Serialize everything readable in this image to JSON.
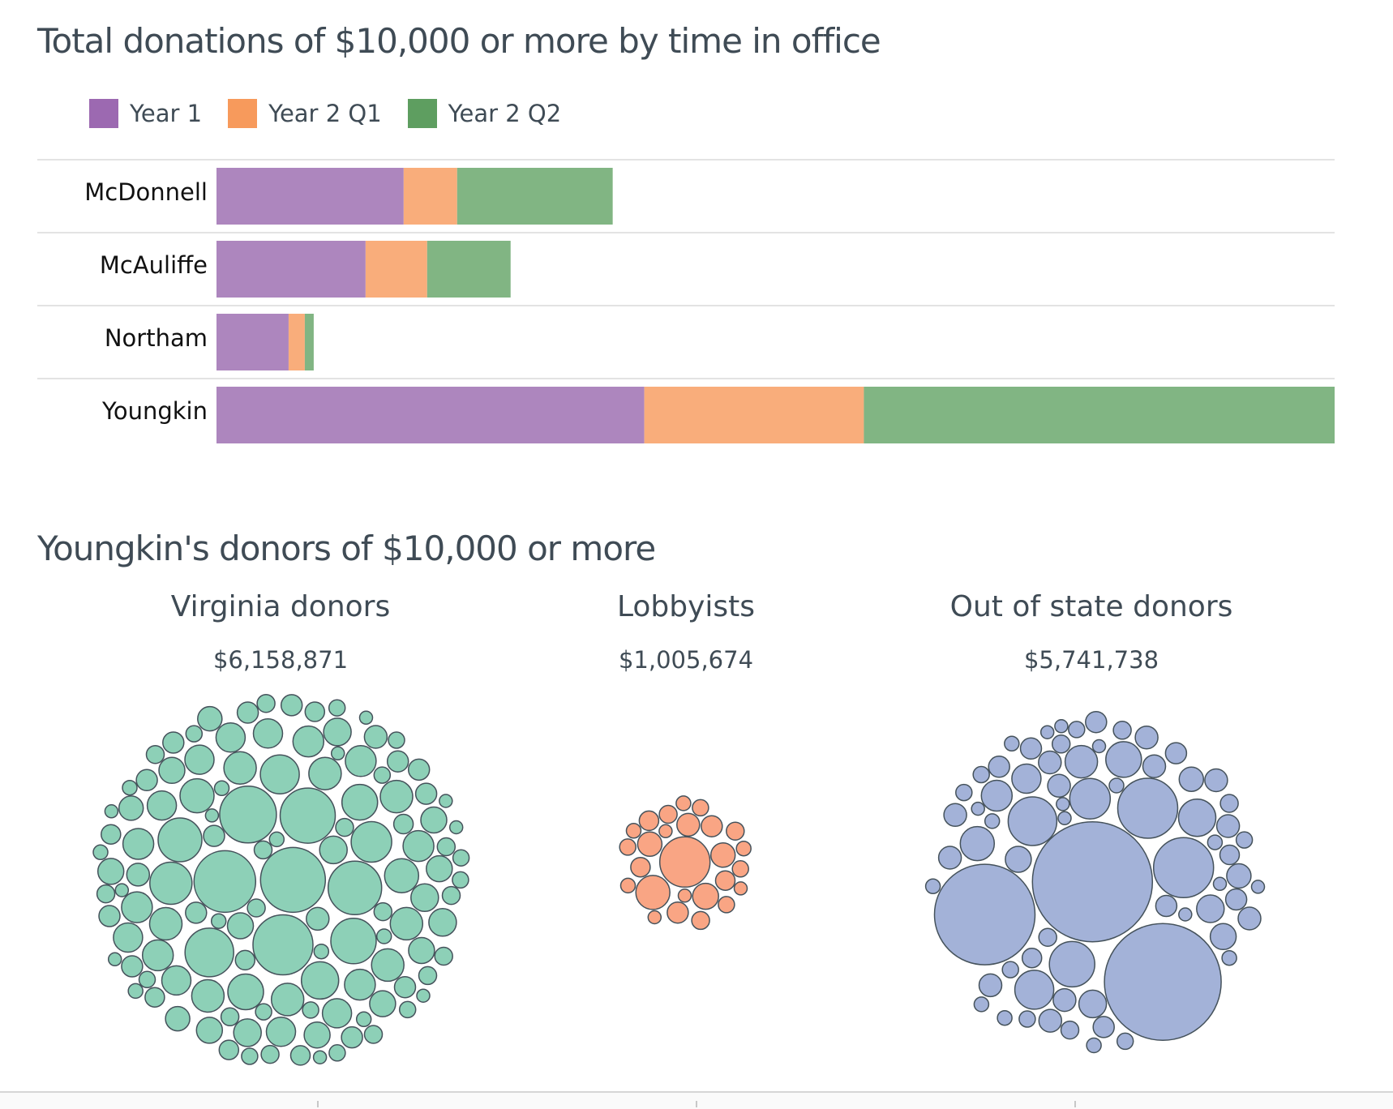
{
  "chart_data": [
    {
      "type": "bar",
      "title": "Total donations of $10,000 or more by time in office",
      "orientation": "horizontal",
      "stacked": true,
      "categories": [
        "McDonnell",
        "McAuliffe",
        "Northam",
        "Youngkin"
      ],
      "series": [
        {
          "name": "Year 1",
          "color": "#ad86be",
          "values": [
            2.31,
            1.84,
            0.89,
            5.28
          ]
        },
        {
          "name": "Year 2 Q1",
          "color": "#f9ad7b",
          "values": [
            0.66,
            0.76,
            0.2,
            2.71
          ]
        },
        {
          "name": "Year 2 Q2",
          "color": "#81b583",
          "values": [
            1.92,
            1.03,
            0.11,
            5.81
          ]
        }
      ],
      "legend_colors": [
        "#9c69b1",
        "#f79a5c",
        "#5e9e60"
      ],
      "xlim": [
        0,
        13.8
      ],
      "grid": false,
      "legend_position": "top-left"
    },
    {
      "type": "bubble",
      "title": "Youngkin's donors of $10,000 or more",
      "groups": [
        {
          "name": "Virginia donors",
          "total": "$6,158,871",
          "color": "#8dd0b7"
        },
        {
          "name": "Lobbyists",
          "total": "$1,005,674",
          "color": "#f9a584"
        },
        {
          "name": "Out of state donors",
          "total": "$5,741,738",
          "color": "#a3b2d8"
        }
      ],
      "stroke_color": "#45525b"
    }
  ]
}
